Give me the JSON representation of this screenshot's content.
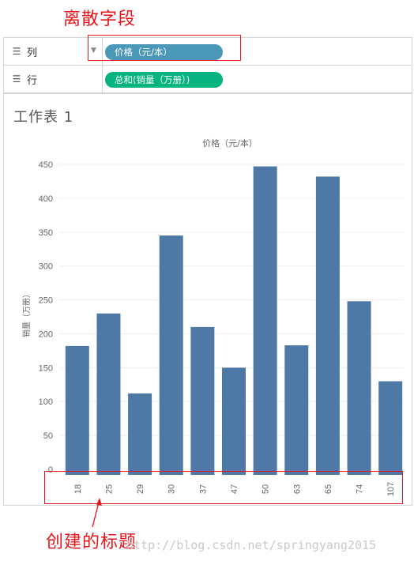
{
  "annotations": {
    "discrete_field": "离散字段",
    "created_title": "创建的标题",
    "watermark": "http://blog.csdn.net/springyang2015"
  },
  "shelves": {
    "columns": {
      "icon": "columns-icon",
      "label": "列",
      "pill": "价格（元/本）",
      "pill_color": "#4a97b7"
    },
    "rows": {
      "icon": "rows-icon",
      "label": "行",
      "pill": "总和(销量（万册）)",
      "pill_color": "#07b37e"
    }
  },
  "sheet": {
    "title": "工作表 1"
  },
  "colors": {
    "bar": "#4e79a7",
    "annotation": "#e8141b"
  },
  "chart_data": {
    "type": "bar",
    "title": "价格（元/本）",
    "xlabel": "",
    "ylabel": "销量（万册）",
    "categories": [
      "18",
      "25",
      "29",
      "30",
      "37",
      "47",
      "50",
      "63",
      "65",
      "74",
      "107"
    ],
    "values": [
      182,
      230,
      112,
      345,
      210,
      150,
      447,
      183,
      432,
      248,
      130
    ],
    "ylim": [
      0,
      450
    ],
    "yticks": [
      0,
      50,
      100,
      150,
      200,
      250,
      300,
      350,
      400,
      450
    ],
    "grid": true,
    "legend": "none"
  }
}
